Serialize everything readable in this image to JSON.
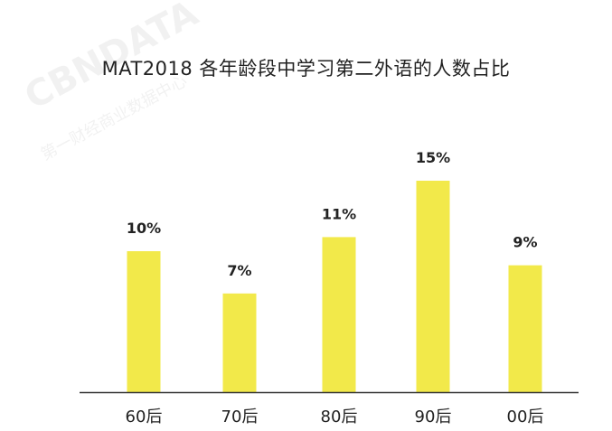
{
  "chart_data": {
    "type": "bar",
    "title": "MAT2018 各年龄段中学习第二外语的人数占比",
    "categories": [
      "60后",
      "70后",
      "80后",
      "90后",
      "00后"
    ],
    "values": [
      10,
      7,
      11,
      15,
      9
    ],
    "value_labels": [
      "10%",
      "7%",
      "11%",
      "15%",
      "9%"
    ],
    "xlabel": "",
    "ylabel": "",
    "ylim": [
      0,
      16
    ],
    "grid": false,
    "legend": "none",
    "bar_color": "#f2e94a"
  },
  "watermark": "CBNDATA 第一财经商业数据中心"
}
